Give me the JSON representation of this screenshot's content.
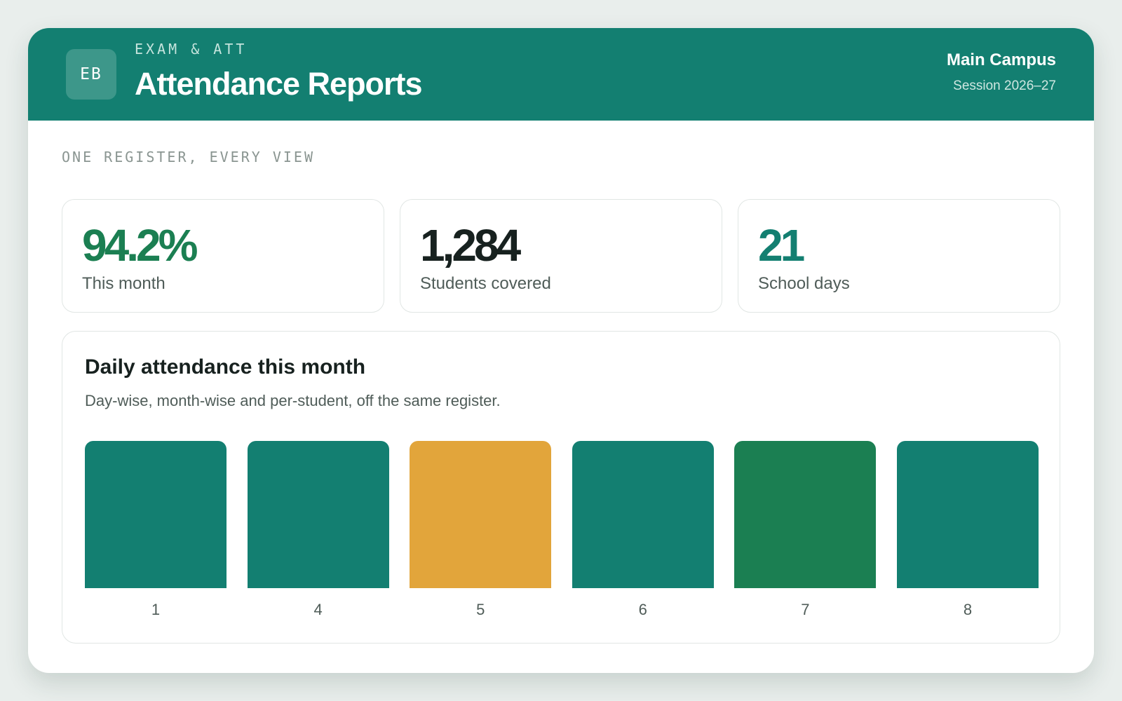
{
  "header": {
    "logo_initials": "EB",
    "eyebrow": "EXAM & ATT",
    "title": "Attendance Reports",
    "campus": "Main Campus",
    "session": "Session 2026–27"
  },
  "tagline": "ONE REGISTER, EVERY VIEW",
  "stats": [
    {
      "value": "94.2%",
      "label": "This month",
      "color": "#1b7f52"
    },
    {
      "value": "1,284",
      "label": "Students covered",
      "color": "#17211f"
    },
    {
      "value": "21",
      "label": "School days",
      "color": "#137f71"
    }
  ],
  "panel": {
    "title": "Daily attendance this month",
    "subtitle": "Day-wise, month-wise and per-student, off the same register."
  },
  "colors": {
    "header": "#137f71",
    "bar_default": "#137f71",
    "bar_warning": "#e2a53b",
    "bar_high": "#1b7f52"
  },
  "chart_data": {
    "type": "bar",
    "categories": [
      "1",
      "4",
      "5",
      "6",
      "7",
      "8"
    ],
    "values": [
      1,
      1,
      1,
      1,
      1,
      1
    ],
    "bar_colors": [
      "#137f71",
      "#137f71",
      "#e2a53b",
      "#137f71",
      "#1b7f52",
      "#137f71"
    ],
    "title": "Daily attendance this month",
    "xlabel": "",
    "ylabel": "",
    "ylim": [
      0,
      1
    ],
    "grid": false
  }
}
